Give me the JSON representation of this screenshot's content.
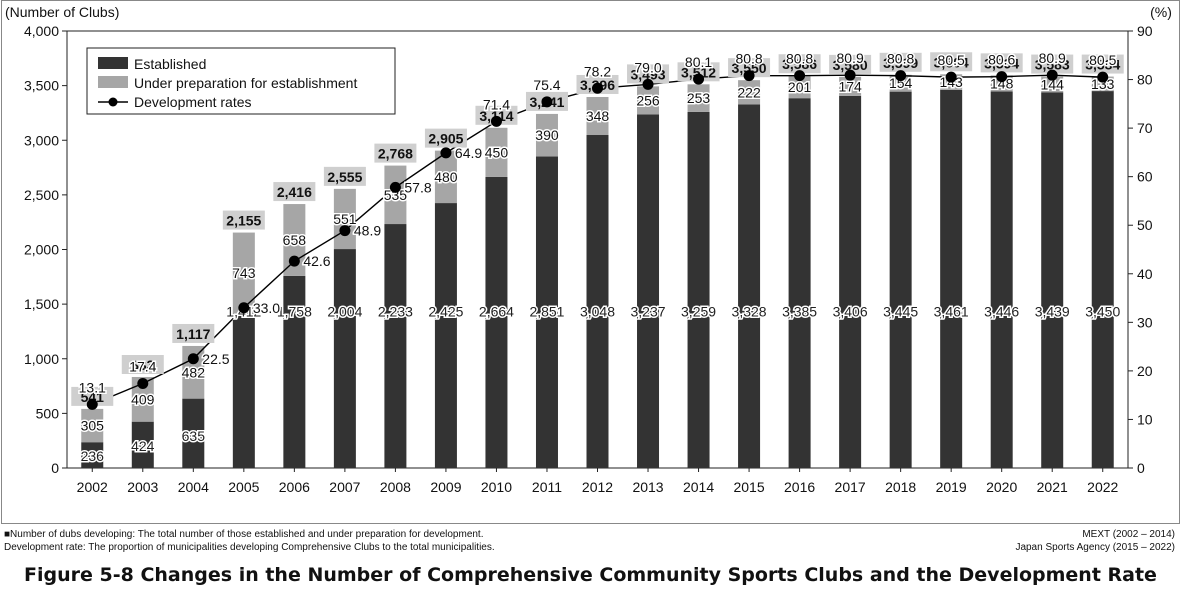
{
  "chart_data": {
    "type": "bar",
    "stacked": true,
    "categories": [
      "2002",
      "2003",
      "2004",
      "2005",
      "2006",
      "2007",
      "2008",
      "2009",
      "2010",
      "2011",
      "2012",
      "2013",
      "2014",
      "2015",
      "2016",
      "2017",
      "2018",
      "2019",
      "2020",
      "2021",
      "2022"
    ],
    "series": [
      {
        "name": "Established",
        "type": "bar",
        "color": "#333333",
        "values": [
          236,
          424,
          635,
          1412,
          1758,
          2004,
          2233,
          2425,
          2664,
          2851,
          3048,
          3237,
          3259,
          3328,
          3385,
          3406,
          3445,
          3461,
          3446,
          3439,
          3450
        ],
        "labels": [
          "236",
          "424",
          "635",
          "1,412",
          "1,758",
          "2,004",
          "2,233",
          "2,425",
          "2,664",
          "2,851",
          "3,048",
          "3,237",
          "3,259",
          "3,328",
          "3,385",
          "3,406",
          "3,445",
          "3,461",
          "3,446",
          "3,439",
          "3,450"
        ]
      },
      {
        "name": "Under preparation for establishment",
        "type": "bar",
        "color": "#a6a6a6",
        "values": [
          305,
          409,
          482,
          743,
          658,
          551,
          535,
          480,
          450,
          390,
          348,
          256,
          253,
          222,
          201,
          174,
          154,
          143,
          148,
          144,
          133
        ],
        "labels": [
          "305",
          "409",
          "482",
          "743",
          "658",
          "551",
          "535",
          "480",
          "450",
          "390",
          "348",
          "256",
          "253",
          "222",
          "201",
          "174",
          "154",
          "143",
          "148",
          "144",
          "133"
        ]
      },
      {
        "name": "Development rates",
        "type": "line",
        "axis": "right",
        "color": "#000000",
        "values": [
          13.1,
          17.4,
          22.5,
          33.0,
          42.6,
          48.9,
          57.8,
          64.9,
          71.4,
          75.4,
          78.2,
          79.0,
          80.1,
          80.8,
          80.8,
          80.9,
          80.8,
          80.5,
          80.6,
          80.9,
          80.5
        ],
        "labels": [
          "13.1",
          "17.4",
          "22.5",
          "33.0",
          "42.6",
          "48.9",
          "57.8",
          "64.9",
          "71.4",
          "75.4",
          "78.2",
          "79.0",
          "80.1",
          "80.8",
          "80.8",
          "80.9",
          "80.8",
          "80.5",
          "80.6",
          "80.9",
          "80.5"
        ]
      }
    ],
    "totals": [
      "541",
      "833",
      "1,117",
      "2,155",
      "2,416",
      "2,555",
      "2,768",
      "2,905",
      "3,114",
      "3,241",
      "3,396",
      "3,493",
      "3,512",
      "3,550",
      "3,586",
      "3,580",
      "3,599",
      "3,604",
      "3,594",
      "3,583",
      "3,584"
    ],
    "ylabel": "(Number of Clubs)",
    "y2label": "(%)",
    "ylim": [
      0,
      4000
    ],
    "y2lim": [
      0,
      90
    ],
    "yticks": [
      "0",
      "500",
      "1,000",
      "1,500",
      "2,000",
      "2,500",
      "3,000",
      "3,500",
      "4,000"
    ],
    "y2ticks": [
      "0",
      "10",
      "20",
      "30",
      "40",
      "50",
      "60",
      "70",
      "80",
      "90"
    ],
    "legend_position": "top-left",
    "grid": false
  },
  "notes": {
    "note_1": "■Number of dubs developing: The total number of those established and under preparation for development.",
    "note_2": "Development rate: The proportion of municipalities developing Comprehensive Clubs to the total municipalities.",
    "source_1": "MEXT (2002 – 2014)",
    "source_2": "Japan Sports Agency (2015 – 2022)"
  },
  "caption": "Figure 5-8  Changes in the Number of Comprehensive Community Sports Clubs and the Development Rate"
}
